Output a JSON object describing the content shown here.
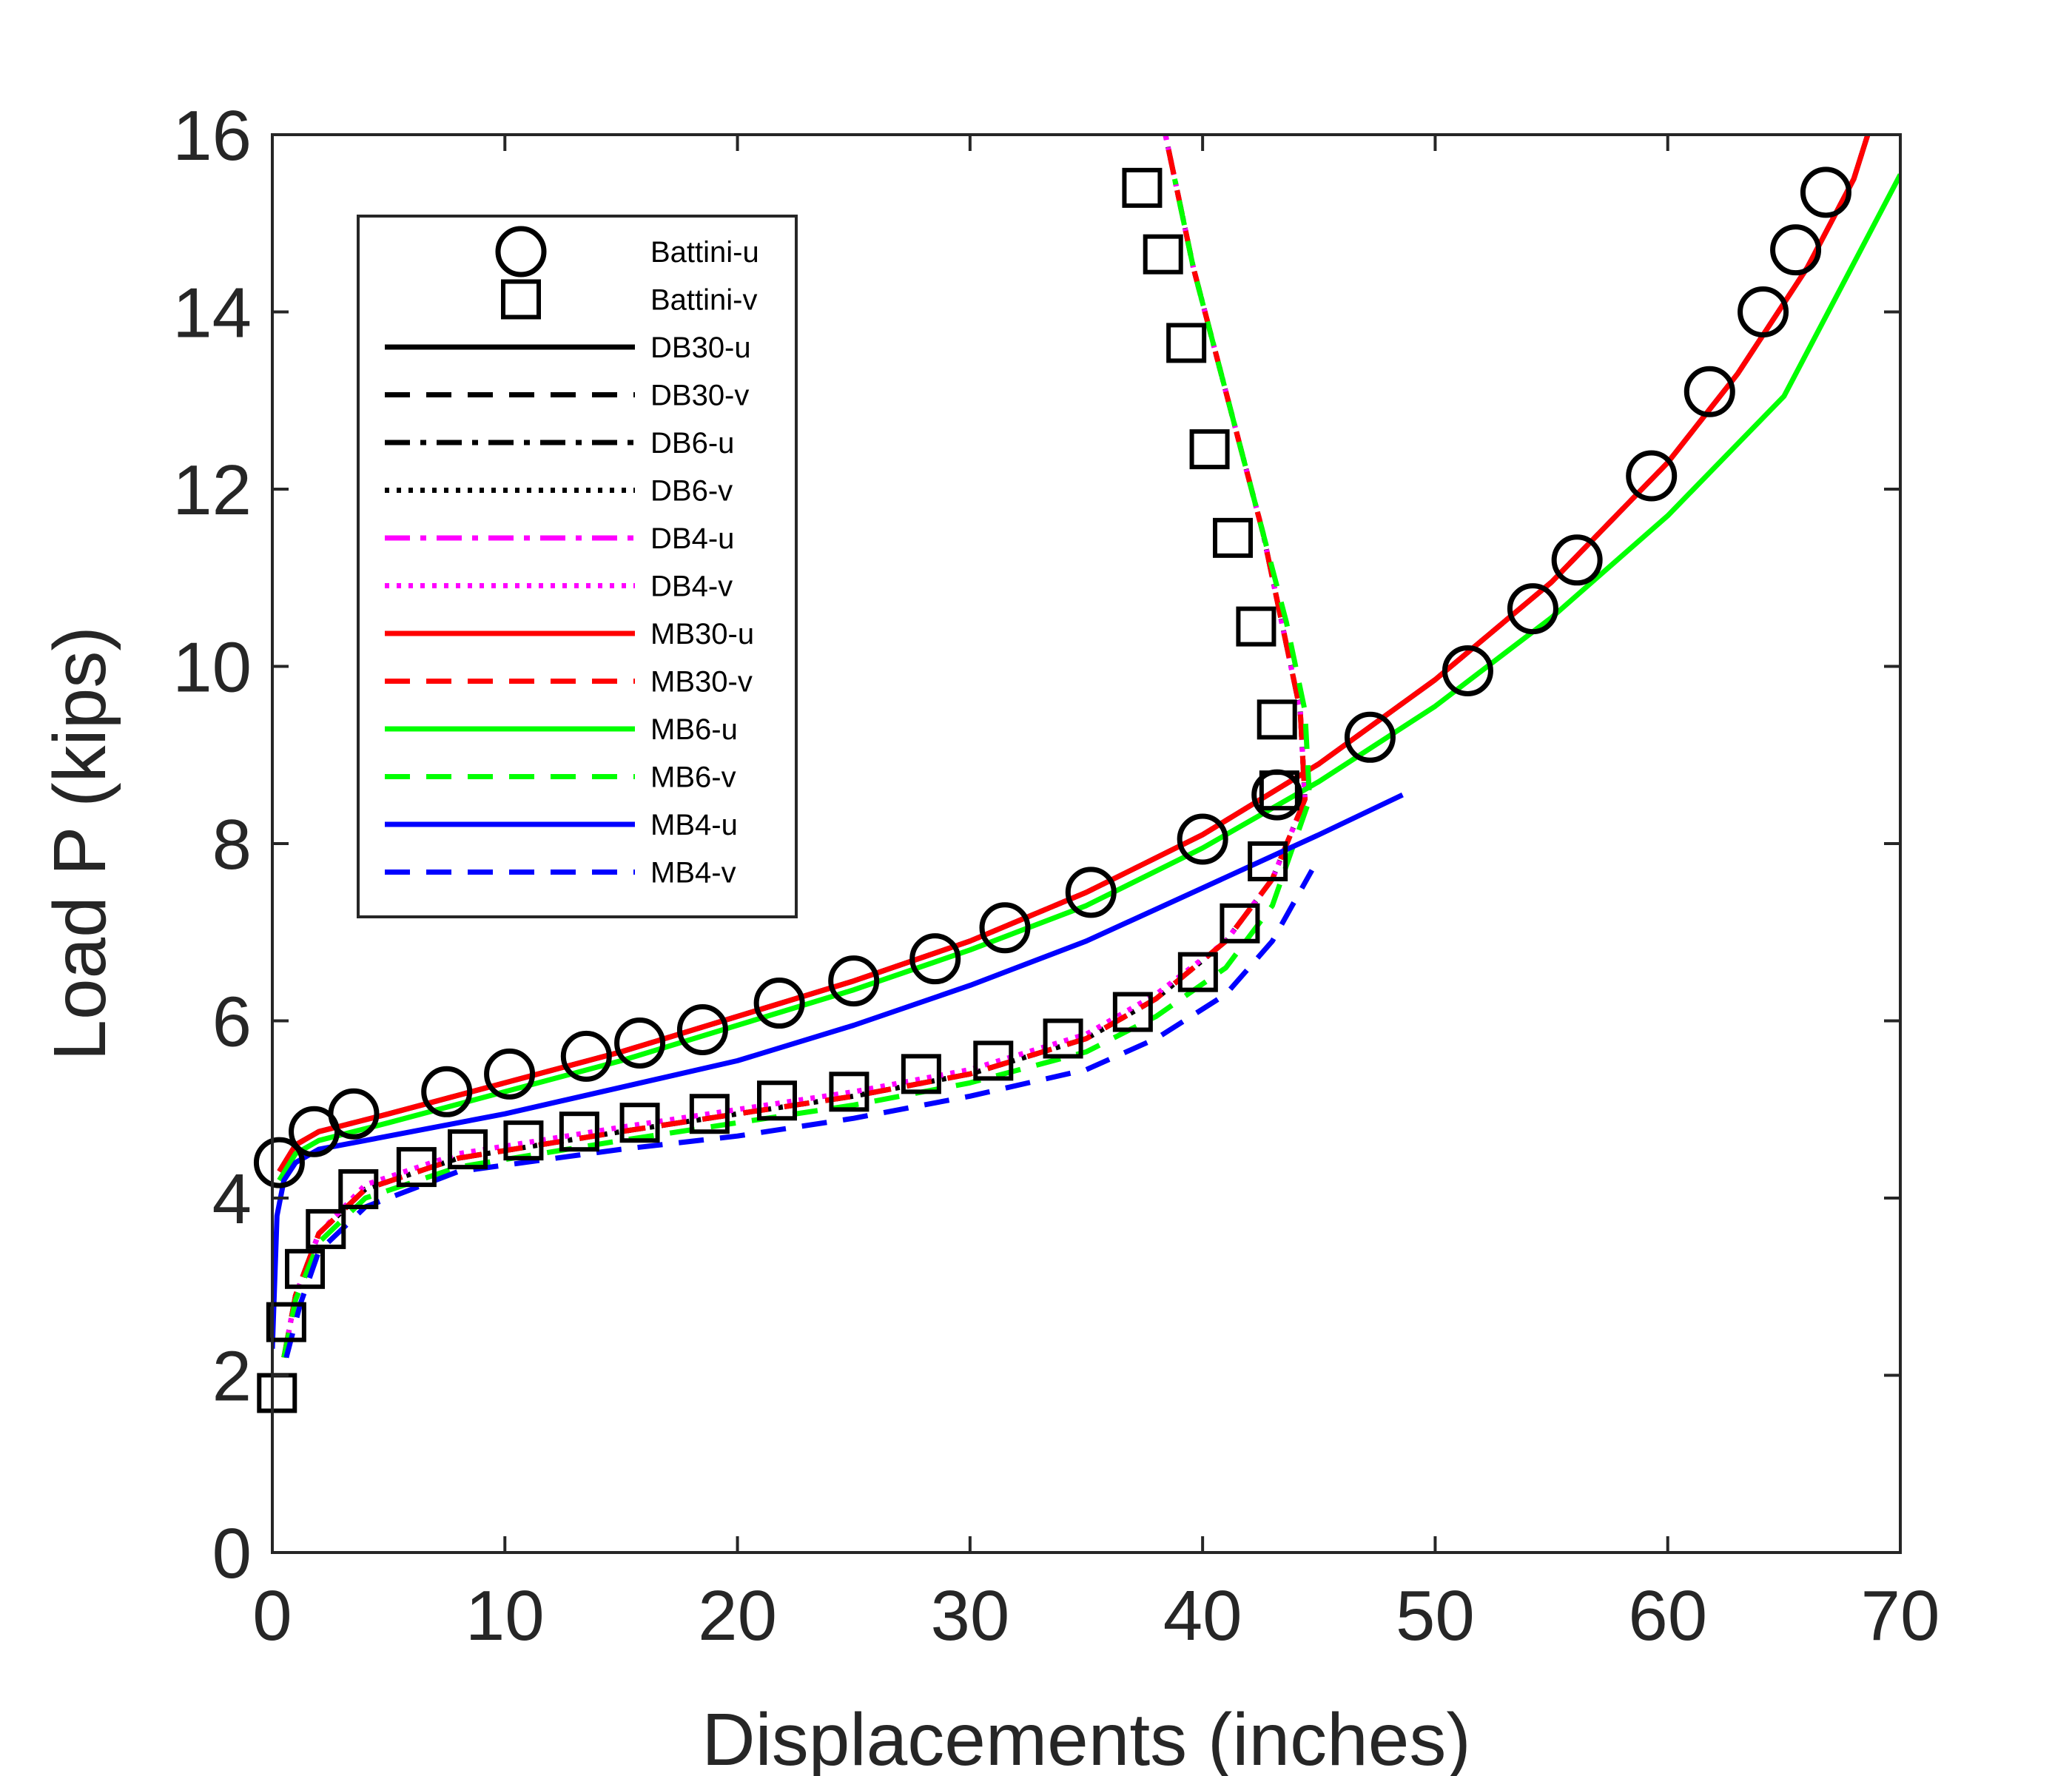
{
  "chart_data": {
    "type": "line",
    "xlabel": "Displacements (inches)",
    "ylabel": "Load P (kips)",
    "xlim": [
      0,
      70
    ],
    "ylim": [
      0,
      16
    ],
    "xticks": [
      "0",
      "10",
      "20",
      "30",
      "40",
      "50",
      "60",
      "70"
    ],
    "yticks": [
      "0",
      "2",
      "4",
      "6",
      "8",
      "10",
      "12",
      "14",
      "16"
    ],
    "grid": false,
    "legend_position": "top-left",
    "series": [
      {
        "name": "Battini-u",
        "color": "#000000",
        "style": "marker-circle",
        "points": [
          [
            0.3,
            4.4
          ],
          [
            1.8,
            4.75
          ],
          [
            3.5,
            4.95
          ],
          [
            7.5,
            5.2
          ],
          [
            10.2,
            5.4
          ],
          [
            13.5,
            5.6
          ],
          [
            15.8,
            5.75
          ],
          [
            18.5,
            5.9
          ],
          [
            21.8,
            6.2
          ],
          [
            25,
            6.45
          ],
          [
            28.5,
            6.7
          ],
          [
            31.5,
            7.05
          ],
          [
            35.2,
            7.45
          ],
          [
            40,
            8.05
          ],
          [
            43.2,
            8.55
          ],
          [
            47.2,
            9.2
          ],
          [
            51.4,
            9.95
          ],
          [
            54.2,
            10.65
          ],
          [
            56.1,
            11.2
          ],
          [
            59.3,
            12.15
          ],
          [
            61.8,
            13.1
          ],
          [
            64.1,
            14.0
          ],
          [
            65.5,
            14.7
          ],
          [
            66.8,
            15.35
          ]
        ]
      },
      {
        "name": "Battini-v",
        "color": "#000000",
        "style": "marker-square",
        "points": [
          [
            0.2,
            1.8
          ],
          [
            0.6,
            2.6
          ],
          [
            1.4,
            3.2
          ],
          [
            2.3,
            3.65
          ],
          [
            3.7,
            4.1
          ],
          [
            6.2,
            4.35
          ],
          [
            8.4,
            4.55
          ],
          [
            10.8,
            4.65
          ],
          [
            13.2,
            4.75
          ],
          [
            15.8,
            4.85
          ],
          [
            18.8,
            4.95
          ],
          [
            21.7,
            5.1
          ],
          [
            24.8,
            5.2
          ],
          [
            27.9,
            5.4
          ],
          [
            31,
            5.55
          ],
          [
            34,
            5.8
          ],
          [
            37,
            6.1
          ],
          [
            39.8,
            6.55
          ],
          [
            41.6,
            7.1
          ],
          [
            42.8,
            7.8
          ],
          [
            43.3,
            8.6
          ],
          [
            43.2,
            9.4
          ],
          [
            42.3,
            10.45
          ],
          [
            41.3,
            11.45
          ],
          [
            40.3,
            12.45
          ],
          [
            39.3,
            13.65
          ],
          [
            38.3,
            14.65
          ],
          [
            37.4,
            15.4
          ]
        ]
      },
      {
        "name": "DB30-u",
        "color": "#000000",
        "style": "solid",
        "points": [
          [
            0.3,
            4.3
          ],
          [
            1,
            4.6
          ],
          [
            2,
            4.75
          ],
          [
            5,
            4.95
          ],
          [
            10,
            5.3
          ],
          [
            15,
            5.65
          ],
          [
            20,
            6.05
          ],
          [
            25,
            6.45
          ],
          [
            30,
            6.9
          ],
          [
            35,
            7.45
          ],
          [
            40,
            8.1
          ],
          [
            45,
            8.9
          ],
          [
            50,
            9.85
          ],
          [
            55,
            10.95
          ],
          [
            60,
            12.3
          ],
          [
            63,
            13.3
          ],
          [
            66,
            14.5
          ],
          [
            68,
            15.5
          ],
          [
            68.6,
            16
          ]
        ]
      },
      {
        "name": "DB30-v",
        "color": "#000000",
        "style": "dashed",
        "points": [
          [
            0.5,
            2.2
          ],
          [
            1,
            2.9
          ],
          [
            2,
            3.6
          ],
          [
            4,
            4.1
          ],
          [
            8,
            4.45
          ],
          [
            15,
            4.75
          ],
          [
            20,
            4.95
          ],
          [
            25,
            5.15
          ],
          [
            30,
            5.4
          ],
          [
            35,
            5.8
          ],
          [
            38,
            6.25
          ],
          [
            41,
            6.9
          ],
          [
            43,
            7.6
          ],
          [
            44.4,
            8.5
          ],
          [
            44.2,
            9.5
          ],
          [
            43.4,
            10.5
          ],
          [
            42.6,
            11.5
          ],
          [
            41.6,
            12.5
          ],
          [
            40.6,
            13.5
          ],
          [
            39.6,
            14.5
          ],
          [
            38.4,
            16
          ]
        ]
      },
      {
        "name": "DB6-u",
        "color": "#000000",
        "style": "dashdot",
        "points": [
          [
            0.3,
            4.3
          ],
          [
            1,
            4.6
          ],
          [
            2,
            4.75
          ],
          [
            5,
            4.95
          ],
          [
            10,
            5.3
          ],
          [
            15,
            5.65
          ],
          [
            20,
            6.05
          ],
          [
            25,
            6.45
          ],
          [
            30,
            6.9
          ],
          [
            35,
            7.45
          ],
          [
            40,
            8.1
          ],
          [
            45,
            8.9
          ],
          [
            50,
            9.85
          ],
          [
            55,
            10.95
          ],
          [
            60,
            12.3
          ],
          [
            63,
            13.3
          ],
          [
            66,
            14.5
          ],
          [
            68,
            15.5
          ],
          [
            68.6,
            16
          ]
        ]
      },
      {
        "name": "DB6-v",
        "color": "#000000",
        "style": "dotted",
        "points": [
          [
            0.5,
            2.2
          ],
          [
            1,
            2.9
          ],
          [
            2,
            3.6
          ],
          [
            4,
            4.1
          ],
          [
            8,
            4.45
          ],
          [
            15,
            4.75
          ],
          [
            20,
            4.95
          ],
          [
            25,
            5.15
          ],
          [
            30,
            5.4
          ],
          [
            35,
            5.8
          ],
          [
            38,
            6.25
          ],
          [
            41,
            6.9
          ],
          [
            43,
            7.6
          ],
          [
            44.4,
            8.5
          ],
          [
            44.2,
            9.5
          ],
          [
            43.4,
            10.5
          ],
          [
            42.6,
            11.5
          ],
          [
            41.6,
            12.5
          ],
          [
            40.6,
            13.5
          ],
          [
            39.6,
            14.5
          ],
          [
            38.4,
            16
          ]
        ]
      },
      {
        "name": "DB4-u",
        "color": "#ff00ff",
        "style": "dashdot",
        "points": [
          [
            0.3,
            4.3
          ],
          [
            1,
            4.6
          ],
          [
            2,
            4.75
          ],
          [
            5,
            4.95
          ],
          [
            10,
            5.3
          ],
          [
            15,
            5.65
          ],
          [
            20,
            6.05
          ],
          [
            25,
            6.45
          ],
          [
            30,
            6.9
          ],
          [
            35,
            7.45
          ],
          [
            40,
            8.1
          ],
          [
            45,
            8.9
          ],
          [
            50,
            9.85
          ],
          [
            55,
            10.95
          ],
          [
            60,
            12.3
          ],
          [
            63,
            13.3
          ],
          [
            66,
            14.5
          ],
          [
            68,
            15.5
          ],
          [
            68.6,
            16
          ]
        ]
      },
      {
        "name": "DB4-v",
        "color": "#ff00ff",
        "style": "dotted",
        "points": [
          [
            0.5,
            2.2
          ],
          [
            1,
            2.9
          ],
          [
            2,
            3.6
          ],
          [
            4,
            4.15
          ],
          [
            8,
            4.5
          ],
          [
            15,
            4.8
          ],
          [
            20,
            5.0
          ],
          [
            25,
            5.2
          ],
          [
            30,
            5.45
          ],
          [
            35,
            5.85
          ],
          [
            38,
            6.3
          ],
          [
            41,
            6.9
          ],
          [
            43,
            7.6
          ],
          [
            44.4,
            8.5
          ],
          [
            44.2,
            9.5
          ],
          [
            43.4,
            10.5
          ],
          [
            42.6,
            11.5
          ],
          [
            41.6,
            12.5
          ],
          [
            40.6,
            13.5
          ],
          [
            39.6,
            14.5
          ],
          [
            38.4,
            16
          ]
        ]
      },
      {
        "name": "MB30-u",
        "color": "#ff0000",
        "style": "solid",
        "points": [
          [
            0.3,
            4.3
          ],
          [
            1,
            4.6
          ],
          [
            2,
            4.75
          ],
          [
            5,
            4.95
          ],
          [
            10,
            5.3
          ],
          [
            15,
            5.65
          ],
          [
            20,
            6.05
          ],
          [
            25,
            6.45
          ],
          [
            30,
            6.9
          ],
          [
            35,
            7.45
          ],
          [
            40,
            8.1
          ],
          [
            45,
            8.9
          ],
          [
            50,
            9.85
          ],
          [
            55,
            10.95
          ],
          [
            60,
            12.3
          ],
          [
            63,
            13.3
          ],
          [
            66,
            14.5
          ],
          [
            68,
            15.5
          ],
          [
            68.6,
            16
          ]
        ]
      },
      {
        "name": "MB30-v",
        "color": "#ff0000",
        "style": "dashed",
        "points": [
          [
            0.5,
            2.2
          ],
          [
            1,
            2.9
          ],
          [
            2,
            3.6
          ],
          [
            4,
            4.1
          ],
          [
            8,
            4.45
          ],
          [
            15,
            4.75
          ],
          [
            20,
            4.95
          ],
          [
            25,
            5.15
          ],
          [
            30,
            5.4
          ],
          [
            35,
            5.8
          ],
          [
            38,
            6.25
          ],
          [
            41,
            6.9
          ],
          [
            43,
            7.6
          ],
          [
            44.4,
            8.5
          ],
          [
            44.2,
            9.5
          ],
          [
            43.4,
            10.5
          ],
          [
            42.6,
            11.5
          ],
          [
            41.6,
            12.5
          ],
          [
            40.6,
            13.5
          ],
          [
            39.6,
            14.5
          ],
          [
            38.4,
            16
          ]
        ]
      },
      {
        "name": "MB6-u",
        "color": "#00ff00",
        "style": "solid",
        "points": [
          [
            0.3,
            4.2
          ],
          [
            1,
            4.5
          ],
          [
            2,
            4.65
          ],
          [
            5,
            4.85
          ],
          [
            10,
            5.2
          ],
          [
            15,
            5.55
          ],
          [
            20,
            5.95
          ],
          [
            25,
            6.35
          ],
          [
            30,
            6.8
          ],
          [
            35,
            7.3
          ],
          [
            40,
            7.95
          ],
          [
            45,
            8.7
          ],
          [
            50,
            9.55
          ],
          [
            55,
            10.55
          ],
          [
            60,
            11.7
          ],
          [
            65,
            13.05
          ],
          [
            70,
            15.55
          ]
        ]
      },
      {
        "name": "MB6-v",
        "color": "#00ff00",
        "style": "dashed",
        "points": [
          [
            0.5,
            2.2
          ],
          [
            1,
            2.85
          ],
          [
            2,
            3.5
          ],
          [
            4,
            4.0
          ],
          [
            8,
            4.35
          ],
          [
            15,
            4.65
          ],
          [
            20,
            4.85
          ],
          [
            25,
            5.05
          ],
          [
            30,
            5.3
          ],
          [
            35,
            5.65
          ],
          [
            38,
            6.05
          ],
          [
            41,
            6.6
          ],
          [
            43,
            7.3
          ],
          [
            44.6,
            8.5
          ],
          [
            44.4,
            9.5
          ],
          [
            43.6,
            10.5
          ],
          [
            42.6,
            11.5
          ],
          [
            41.6,
            12.5
          ],
          [
            40.6,
            13.5
          ],
          [
            39.6,
            14.5
          ],
          [
            38.8,
            15.5
          ]
        ]
      },
      {
        "name": "MB4-u",
        "color": "#0000ff",
        "style": "solid",
        "points": [
          [
            0,
            2.3
          ],
          [
            0.2,
            3.8
          ],
          [
            0.5,
            4.2
          ],
          [
            1,
            4.4
          ],
          [
            2,
            4.55
          ],
          [
            5,
            4.7
          ],
          [
            10,
            4.95
          ],
          [
            15,
            5.25
          ],
          [
            20,
            5.55
          ],
          [
            25,
            5.95
          ],
          [
            30,
            6.4
          ],
          [
            35,
            6.9
          ],
          [
            40,
            7.5
          ],
          [
            45,
            8.1
          ],
          [
            48.6,
            8.55
          ]
        ]
      },
      {
        "name": "MB4-v",
        "color": "#0000ff",
        "style": "dashed",
        "points": [
          [
            0.6,
            2.2
          ],
          [
            1.2,
            2.8
          ],
          [
            2,
            3.4
          ],
          [
            4,
            3.9
          ],
          [
            8,
            4.3
          ],
          [
            15,
            4.55
          ],
          [
            20,
            4.7
          ],
          [
            25,
            4.9
          ],
          [
            30,
            5.15
          ],
          [
            35,
            5.45
          ],
          [
            38,
            5.8
          ],
          [
            41,
            6.3
          ],
          [
            43,
            6.9
          ],
          [
            44.7,
            7.7
          ]
        ]
      }
    ]
  }
}
